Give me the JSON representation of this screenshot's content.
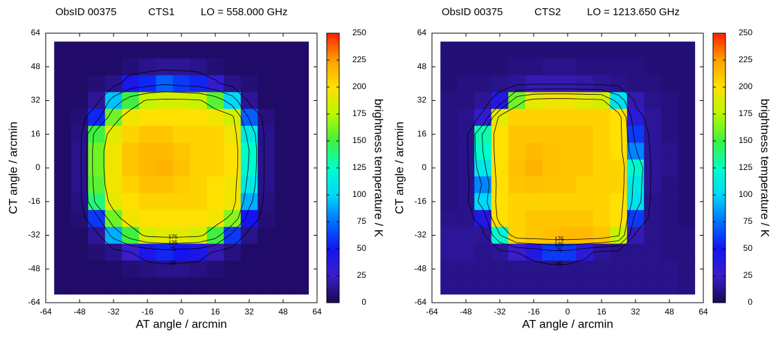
{
  "chart_data": [
    {
      "type": "heatmap",
      "title": [
        "ObsID 00375",
        "CTS1",
        "LO = 558.000 GHz"
      ],
      "x_label": "AT angle / arcmin",
      "y_label": "CT angle / arcmin",
      "xlim": [
        -64,
        64
      ],
      "ylim": [
        -64,
        64
      ],
      "xticks": [
        -64,
        -48,
        -32,
        -16,
        0,
        16,
        32,
        48,
        64
      ],
      "yticks": [
        -64,
        -48,
        -32,
        -16,
        0,
        16,
        32,
        48,
        64
      ],
      "x": [
        -56,
        -48,
        -40,
        -32,
        -24,
        -16,
        -8,
        0,
        8,
        16,
        24,
        32,
        40,
        48,
        56
      ],
      "y": [
        56,
        48,
        40,
        32,
        24,
        16,
        8,
        0,
        -8,
        -16,
        -24,
        -32,
        -40,
        -48,
        -56
      ],
      "z": [
        [
          5,
          5,
          5,
          5,
          5,
          5,
          5,
          5,
          5,
          5,
          5,
          5,
          5,
          5,
          5
        ],
        [
          5,
          5,
          5,
          5,
          8,
          12,
          15,
          15,
          12,
          8,
          5,
          5,
          5,
          5,
          5
        ],
        [
          5,
          5,
          8,
          12,
          45,
          55,
          70,
          60,
          55,
          30,
          12,
          8,
          5,
          5,
          5
        ],
        [
          5,
          5,
          15,
          95,
          150,
          180,
          185,
          185,
          180,
          155,
          100,
          15,
          5,
          5,
          5
        ],
        [
          5,
          8,
          55,
          160,
          195,
          200,
          200,
          200,
          200,
          195,
          185,
          70,
          10,
          5,
          5
        ],
        [
          5,
          10,
          150,
          190,
          205,
          210,
          210,
          205,
          205,
          205,
          195,
          110,
          12,
          5,
          5
        ],
        [
          5,
          12,
          160,
          195,
          210,
          215,
          215,
          210,
          205,
          205,
          200,
          125,
          12,
          5,
          5
        ],
        [
          5,
          12,
          160,
          195,
          210,
          215,
          218,
          212,
          205,
          205,
          200,
          120,
          12,
          5,
          5
        ],
        [
          5,
          12,
          155,
          195,
          205,
          212,
          212,
          208,
          205,
          200,
          195,
          110,
          12,
          5,
          5
        ],
        [
          5,
          10,
          140,
          190,
          200,
          205,
          205,
          205,
          205,
          200,
          195,
          90,
          10,
          5,
          5
        ],
        [
          5,
          8,
          60,
          160,
          195,
          200,
          200,
          200,
          200,
          195,
          165,
          50,
          8,
          5,
          5
        ],
        [
          5,
          5,
          15,
          90,
          150,
          185,
          190,
          190,
          185,
          150,
          60,
          12,
          5,
          5,
          5
        ],
        [
          5,
          5,
          8,
          12,
          25,
          45,
          55,
          50,
          45,
          20,
          10,
          5,
          5,
          5,
          5
        ],
        [
          5,
          5,
          5,
          5,
          8,
          10,
          12,
          12,
          10,
          8,
          5,
          5,
          5,
          5,
          5
        ],
        [
          5,
          5,
          5,
          5,
          5,
          5,
          5,
          5,
          5,
          5,
          5,
          5,
          5,
          5,
          5
        ]
      ],
      "contour_levels": [
        25,
        75,
        125,
        175
      ],
      "colorbar": {
        "label": "brightness temperature / K",
        "lim": [
          0,
          250
        ],
        "ticks": [
          0,
          25,
          50,
          75,
          100,
          125,
          150,
          175,
          200,
          225,
          250
        ],
        "colors": [
          "#1a0850",
          "#3a1ec8",
          "#1414f0",
          "#0070ff",
          "#00d8f8",
          "#00ffc8",
          "#40f040",
          "#b8f800",
          "#ffe000",
          "#ffa000",
          "#ff2000"
        ]
      }
    },
    {
      "type": "heatmap",
      "title": [
        "ObsID 00375",
        "CTS2",
        "LO = 1213.650 GHz"
      ],
      "x_label": "AT angle / arcmin",
      "y_label": "CT angle / arcmin",
      "xlim": [
        -64,
        64
      ],
      "ylim": [
        -64,
        64
      ],
      "xticks": [
        -64,
        -48,
        -32,
        -16,
        0,
        16,
        32,
        48,
        64
      ],
      "yticks": [
        -64,
        -48,
        -32,
        -16,
        0,
        16,
        32,
        48,
        64
      ],
      "x": [
        -56,
        -48,
        -40,
        -32,
        -24,
        -16,
        -8,
        0,
        8,
        16,
        24,
        32,
        40,
        48,
        56
      ],
      "y": [
        56,
        48,
        40,
        32,
        24,
        16,
        8,
        0,
        -8,
        -16,
        -24,
        -32,
        -40,
        -48,
        -56
      ],
      "z": [
        [
          8,
          8,
          8,
          8,
          8,
          8,
          8,
          8,
          8,
          8,
          8,
          8,
          8,
          8,
          8
        ],
        [
          8,
          8,
          8,
          8,
          10,
          10,
          12,
          12,
          10,
          10,
          10,
          10,
          8,
          8,
          8
        ],
        [
          8,
          10,
          10,
          12,
          15,
          20,
          20,
          20,
          18,
          15,
          12,
          10,
          10,
          8,
          8
        ],
        [
          10,
          10,
          15,
          40,
          160,
          190,
          195,
          195,
          190,
          185,
          105,
          20,
          12,
          10,
          8
        ],
        [
          10,
          12,
          30,
          190,
          205,
          205,
          205,
          205,
          205,
          205,
          200,
          35,
          15,
          10,
          8
        ],
        [
          10,
          12,
          130,
          200,
          210,
          210,
          210,
          210,
          210,
          205,
          200,
          60,
          15,
          10,
          8
        ],
        [
          10,
          12,
          125,
          200,
          210,
          215,
          212,
          210,
          210,
          205,
          200,
          80,
          15,
          12,
          8
        ],
        [
          10,
          12,
          110,
          200,
          212,
          218,
          212,
          210,
          210,
          205,
          205,
          120,
          15,
          12,
          8
        ],
        [
          10,
          12,
          80,
          200,
          210,
          212,
          210,
          210,
          205,
          205,
          205,
          110,
          15,
          10,
          8
        ],
        [
          10,
          12,
          100,
          200,
          205,
          205,
          205,
          205,
          205,
          205,
          200,
          105,
          12,
          10,
          8
        ],
        [
          12,
          12,
          40,
          200,
          205,
          210,
          210,
          210,
          210,
          205,
          200,
          60,
          12,
          10,
          8
        ],
        [
          15,
          15,
          15,
          120,
          205,
          210,
          212,
          215,
          215,
          210,
          180,
          20,
          12,
          10,
          10
        ],
        [
          15,
          15,
          12,
          15,
          25,
          40,
          60,
          60,
          35,
          15,
          12,
          12,
          12,
          10,
          10
        ],
        [
          12,
          12,
          12,
          12,
          12,
          12,
          12,
          12,
          12,
          12,
          12,
          12,
          12,
          12,
          10
        ],
        [
          12,
          12,
          12,
          12,
          12,
          12,
          12,
          12,
          12,
          12,
          12,
          12,
          12,
          12,
          10
        ]
      ],
      "contour_levels": [
        25,
        75,
        125,
        175
      ],
      "colorbar": {
        "label": "brightness temperature / K",
        "lim": [
          0,
          250
        ],
        "ticks": [
          0,
          25,
          50,
          75,
          100,
          125,
          150,
          175,
          200,
          225,
          250
        ],
        "colors": [
          "#1a0850",
          "#3a1ec8",
          "#1414f0",
          "#0070ff",
          "#00d8f8",
          "#00ffc8",
          "#40f040",
          "#b8f800",
          "#ffe000",
          "#ffa000",
          "#ff2000"
        ]
      }
    }
  ]
}
